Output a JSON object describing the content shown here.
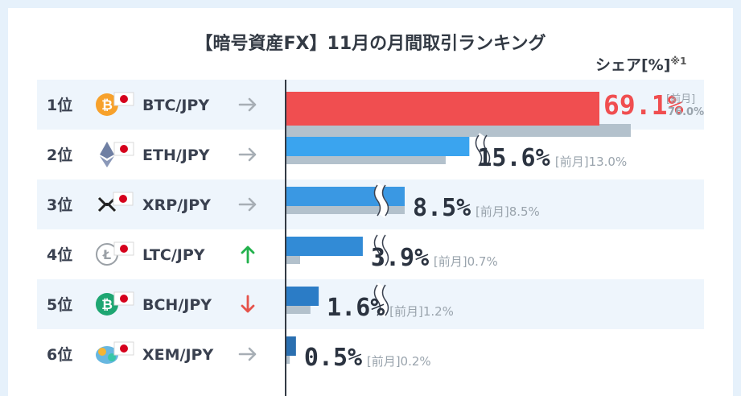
{
  "title": "【暗号資産FX】11月の月間取引ランキング",
  "share_label": "シェア[%]",
  "share_note": "※1",
  "chart_data": {
    "type": "bar",
    "orientation": "horizontal",
    "unit": "%",
    "prev_label": "[前月]",
    "broken_axis": true,
    "rows": [
      {
        "rank": "1位",
        "pair": "BTC/JPY",
        "coin_icon": "bitcoin-icon",
        "trend": "flat",
        "value": 69.1,
        "prev": 76.0,
        "color": "#f04e50"
      },
      {
        "rank": "2位",
        "pair": "ETH/JPY",
        "coin_icon": "ethereum-icon",
        "trend": "flat",
        "value": 15.6,
        "prev": 13.0,
        "color": "#3aa4ef"
      },
      {
        "rank": "3位",
        "pair": "XRP/JPY",
        "coin_icon": "xrp-icon",
        "trend": "flat",
        "value": 8.5,
        "prev": 8.5,
        "color": "#3a98e3"
      },
      {
        "rank": "4位",
        "pair": "LTC/JPY",
        "coin_icon": "litecoin-icon",
        "trend": "up",
        "value": 3.9,
        "prev": 0.7,
        "color": "#328bd6"
      },
      {
        "rank": "5位",
        "pair": "BCH/JPY",
        "coin_icon": "bitcoin-cash-icon",
        "trend": "down",
        "value": 1.6,
        "prev": 1.2,
        "color": "#2b7cc6"
      },
      {
        "rank": "6位",
        "pair": "XEM/JPY",
        "coin_icon": "nem-icon",
        "trend": "flat",
        "value": 0.5,
        "prev": 0.2,
        "color": "#2a6fb0"
      }
    ]
  },
  "colors": {
    "row_stripe": "#eef5fc",
    "prev_bar": "#b3c1cc",
    "value_text": "#2b3340",
    "value_text_top": "#f04e50",
    "arrow_flat": "#a7aeb5",
    "arrow_up": "#22b14c",
    "arrow_down": "#e5534b",
    "axis": "#333a44"
  }
}
